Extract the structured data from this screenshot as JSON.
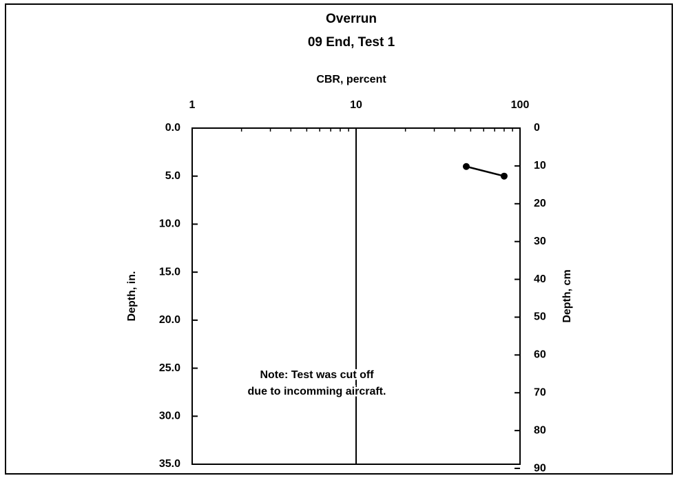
{
  "chart_data": {
    "type": "line",
    "title": "Overrun",
    "subtitle": "09 End, Test 1",
    "x_label": "CBR, percent",
    "y_label": "Depth, in.",
    "y2_label": "Depth, cm",
    "x_log": true,
    "y_inverted": true,
    "xlim": [
      1,
      100
    ],
    "xticks": [
      1,
      10,
      100
    ],
    "x_grid": true,
    "ylim": [
      0,
      35
    ],
    "yticks": [
      {
        "value": 0,
        "label": "0.0"
      },
      {
        "value": 5,
        "label": "5.0"
      },
      {
        "value": 10,
        "label": "10.0"
      },
      {
        "value": 15,
        "label": "15.0"
      },
      {
        "value": 20,
        "label": "20.0"
      },
      {
        "value": 25,
        "label": "25.0"
      },
      {
        "value": 30,
        "label": "30.0"
      },
      {
        "value": 35,
        "label": "35.0"
      }
    ],
    "y2lim": [
      0,
      88.9
    ],
    "y2ticks": [
      0,
      10,
      20,
      30,
      40,
      50,
      60,
      70,
      80,
      90
    ],
    "series": [
      {
        "name": "CBR",
        "color": "#000000",
        "x": [
          47,
          80
        ],
        "values": [
          4.0,
          5.0
        ]
      }
    ],
    "annotation": [
      "Note: Test was cut off",
      "due to incomming aircraft."
    ]
  }
}
